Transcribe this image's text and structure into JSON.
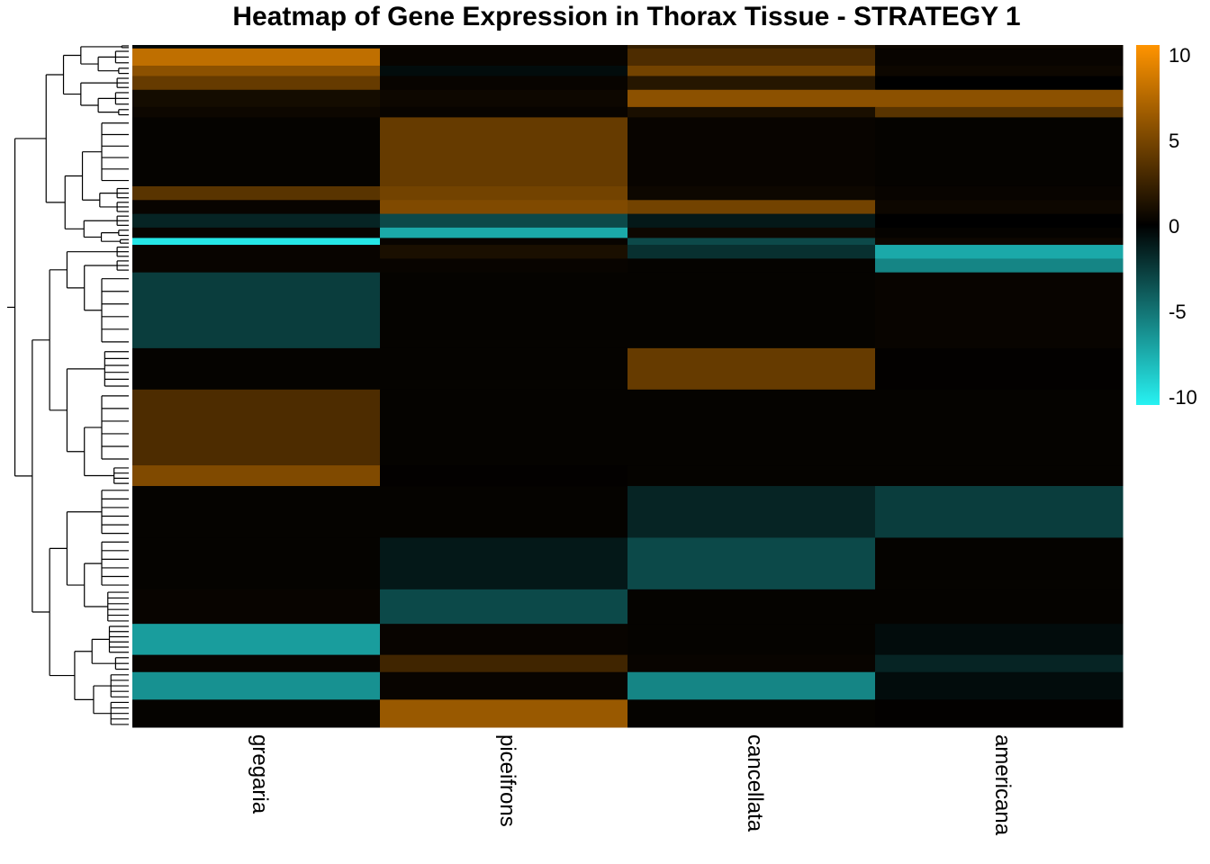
{
  "chart_data": {
    "type": "heatmap",
    "title": "Heatmap of Gene Expression in Thorax Tissue - STRATEGY 1",
    "columns": [
      "gregaria",
      "piceifrons",
      "cancellata",
      "americana"
    ],
    "color_scale": {
      "min": -10,
      "max": 10,
      "low": "#27f2f2",
      "mid": "#000000",
      "high": "#ff9400"
    },
    "legend_ticks": [
      10,
      5,
      0,
      -5,
      -10
    ],
    "row_blocks": [
      {
        "rows": 1,
        "values": [
          -0.3,
          0.3,
          2.0,
          0.5
        ]
      },
      {
        "rows": 5,
        "values": [
          7.5,
          0.3,
          3.0,
          0.3
        ]
      },
      {
        "rows": 3,
        "values": [
          5.5,
          -0.5,
          4.5,
          0.5
        ]
      },
      {
        "rows": 4,
        "values": [
          4.0,
          0.3,
          1.5,
          0.0
        ]
      },
      {
        "rows": 5,
        "values": [
          0.8,
          0.5,
          5.5,
          5.5
        ]
      },
      {
        "rows": 3,
        "values": [
          0.5,
          0.3,
          1.0,
          3.5
        ]
      },
      {
        "rows": 20,
        "values": [
          0.2,
          4.0,
          0.3,
          0.2
        ]
      },
      {
        "rows": 4,
        "values": [
          3.5,
          4.5,
          0.5,
          0.3
        ]
      },
      {
        "rows": 4,
        "values": [
          0.3,
          5.0,
          4.5,
          0.5
        ]
      },
      {
        "rows": 4,
        "values": [
          -1.5,
          -3.0,
          -1.0,
          0.0
        ]
      },
      {
        "rows": 3,
        "values": [
          0.3,
          -7.0,
          0.5,
          0.2
        ]
      },
      {
        "rows": 2,
        "values": [
          -9.5,
          0.3,
          -3.0,
          0.5
        ]
      },
      {
        "rows": 4,
        "values": [
          0.3,
          1.0,
          -2.0,
          -7.0
        ]
      },
      {
        "rows": 4,
        "values": [
          0.3,
          0.3,
          0.2,
          -5.5
        ]
      },
      {
        "rows": 22,
        "values": [
          -2.5,
          0.2,
          0.2,
          0.3
        ]
      },
      {
        "rows": 12,
        "values": [
          0.2,
          0.2,
          4.0,
          0.1
        ]
      },
      {
        "rows": 22,
        "values": [
          3.0,
          0.2,
          0.2,
          0.2
        ]
      },
      {
        "rows": 6,
        "values": [
          5.0,
          0.1,
          0.2,
          0.2
        ]
      },
      {
        "rows": 15,
        "values": [
          0.2,
          0.2,
          -1.5,
          -2.5
        ]
      },
      {
        "rows": 15,
        "values": [
          0.2,
          -1.0,
          -3.0,
          0.2
        ]
      },
      {
        "rows": 10,
        "values": [
          0.3,
          -3.0,
          0.2,
          0.2
        ]
      },
      {
        "rows": 9,
        "values": [
          -6.5,
          0.3,
          0.2,
          -0.5
        ]
      },
      {
        "rows": 5,
        "values": [
          0.3,
          2.5,
          0.3,
          -1.5
        ]
      },
      {
        "rows": 8,
        "values": [
          -6.0,
          0.3,
          -5.5,
          -0.5
        ]
      },
      {
        "rows": 8,
        "values": [
          0.2,
          6.0,
          0.2,
          0.1
        ]
      }
    ]
  }
}
